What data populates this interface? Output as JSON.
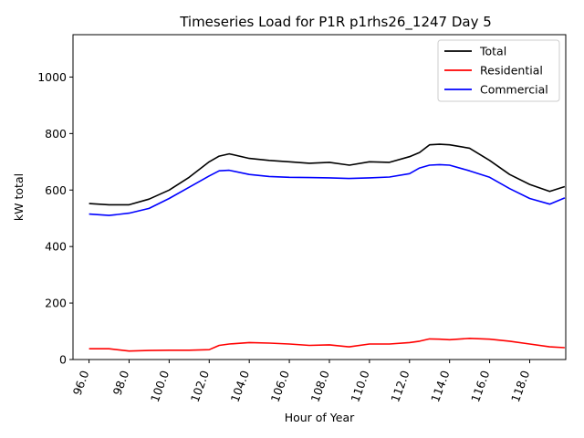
{
  "chart_data": {
    "type": "line",
    "title": "Timeseries Load for P1R p1rhs26_1247  Day 5",
    "xlabel": "Hour of Year",
    "ylabel": "kW total",
    "xlim": [
      95.2,
      119.8
    ],
    "ylim": [
      0,
      1150
    ],
    "xticks": [
      96,
      98,
      100,
      102,
      104,
      106,
      108,
      110,
      112,
      114,
      116,
      118
    ],
    "xtick_labels": [
      "96.0",
      "98.0",
      "100.0",
      "102.0",
      "104.0",
      "106.0",
      "108.0",
      "110.0",
      "112.0",
      "114.0",
      "116.0",
      "118.0"
    ],
    "yticks": [
      0,
      200,
      400,
      600,
      800,
      1000
    ],
    "ytick_labels": [
      "0",
      "200",
      "400",
      "600",
      "800",
      "1000"
    ],
    "legend_position": "top-right",
    "x": [
      96,
      97,
      98,
      99,
      100,
      101,
      102,
      102.5,
      103,
      104,
      105,
      106,
      107,
      108,
      109,
      110,
      111,
      112,
      112.5,
      113,
      113.5,
      114,
      115,
      116,
      117,
      118,
      119,
      119.75
    ],
    "series": [
      {
        "name": "Total",
        "color": "#000000",
        "values": [
          552,
          548,
          548,
          568,
          600,
          645,
          700,
          720,
          728,
          712,
          705,
          700,
          695,
          698,
          688,
          700,
          698,
          718,
          733,
          760,
          762,
          760,
          748,
          705,
          655,
          620,
          595,
          612
        ]
      },
      {
        "name": "Residential",
        "color": "#ff0000",
        "values": [
          38,
          38,
          30,
          32,
          33,
          33,
          35,
          50,
          55,
          60,
          58,
          55,
          50,
          52,
          45,
          55,
          55,
          60,
          65,
          73,
          72,
          70,
          75,
          72,
          65,
          55,
          45,
          42
        ]
      },
      {
        "name": "Commercial",
        "color": "#0000ff",
        "values": [
          515,
          510,
          518,
          535,
          570,
          610,
          650,
          668,
          670,
          655,
          648,
          645,
          644,
          643,
          641,
          643,
          646,
          658,
          678,
          688,
          690,
          688,
          668,
          645,
          605,
          570,
          550,
          572
        ]
      }
    ]
  }
}
